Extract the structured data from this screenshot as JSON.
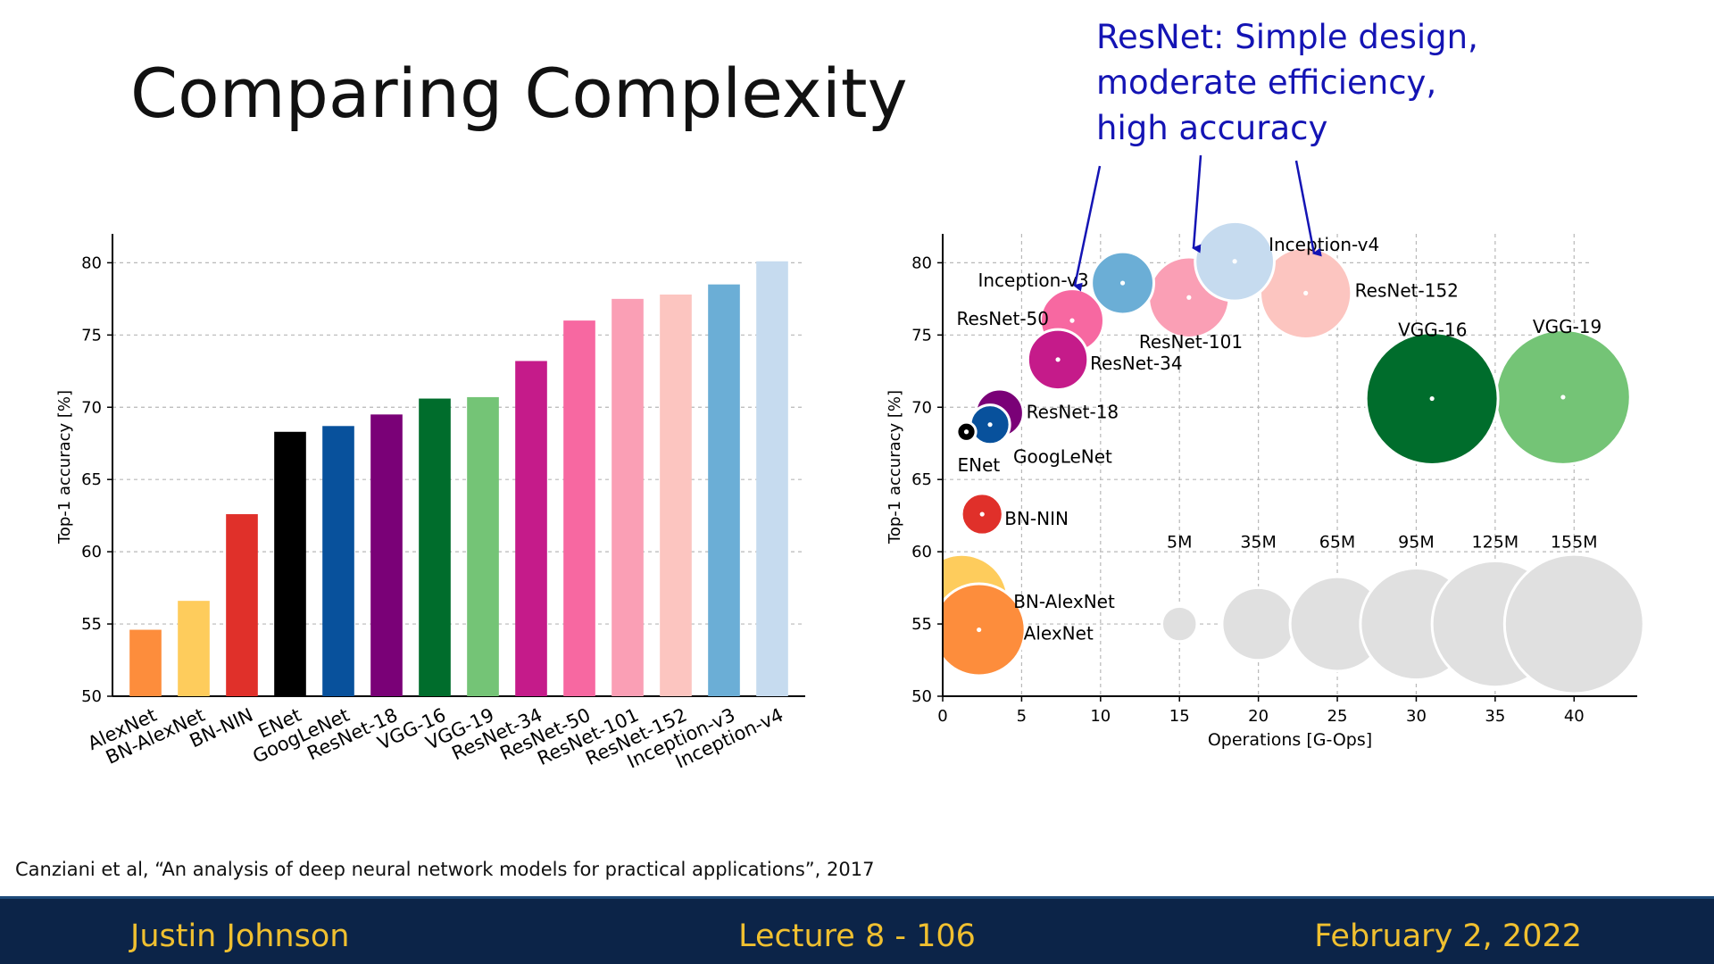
{
  "slide": {
    "title": "Comparing Complexity",
    "note_lines": [
      "ResNet: Simple design,",
      "moderate efficiency,",
      "high accuracy"
    ],
    "citation": "Canziani et al, “An analysis of deep neural network models for practical applications”, 2017",
    "footer": {
      "author": "Justin Johnson",
      "lecture": "Lecture 8 - 106",
      "date": "February 2, 2022"
    }
  },
  "colors": {
    "note": "#1414b4",
    "footer_bg": "#0c2448",
    "footer_text": "#f0c030"
  },
  "chart_data": [
    {
      "type": "bar",
      "ylabel": "Top-1 accuracy [%]",
      "xlabel": "",
      "ylim": [
        50,
        82
      ],
      "yticks": [
        50,
        55,
        60,
        65,
        70,
        75,
        80
      ],
      "grid": true,
      "categories": [
        "AlexNet",
        "BN-AlexNet",
        "BN-NIN",
        "ENet",
        "GoogLeNet",
        "ResNet-18",
        "VGG-16",
        "VGG-19",
        "ResNet-34",
        "ResNet-50",
        "ResNet-101",
        "ResNet-152",
        "Inception-v3",
        "Inception-v4"
      ],
      "values": [
        54.6,
        56.6,
        62.6,
        68.3,
        68.7,
        69.5,
        70.6,
        70.7,
        73.2,
        76.0,
        77.5,
        77.8,
        78.5,
        80.1
      ],
      "colors": [
        "#fd8d3c",
        "#fecc5c",
        "#e0302a",
        "#000000",
        "#08519c",
        "#7a0177",
        "#006d2c",
        "#74c476",
        "#c51b8a",
        "#f768a1",
        "#fa9fb5",
        "#fcc5c0",
        "#6baed6",
        "#c6dbef"
      ]
    },
    {
      "type": "scatter",
      "xlabel": "Operations [G-Ops]",
      "ylabel": "Top-1 accuracy [%]",
      "xlim": [
        0,
        44
      ],
      "ylim": [
        50,
        82
      ],
      "xticks": [
        0,
        5,
        10,
        15,
        20,
        25,
        30,
        35,
        40
      ],
      "yticks": [
        50,
        55,
        60,
        65,
        70,
        75,
        80
      ],
      "grid": true,
      "points": [
        {
          "name": "AlexNet",
          "x": 2.3,
          "y": 54.6,
          "params_m": 61,
          "color": "#fd8d3c"
        },
        {
          "name": "BN-AlexNet",
          "x": 1.2,
          "y": 56.6,
          "params_m": 62,
          "color": "#fecc5c"
        },
        {
          "name": "BN-NIN",
          "x": 2.5,
          "y": 62.6,
          "params_m": 8,
          "color": "#e0302a"
        },
        {
          "name": "ENet",
          "x": 1.5,
          "y": 68.3,
          "params_m": 0.4,
          "color": "#000000"
        },
        {
          "name": "GoogLeNet",
          "x": 3.0,
          "y": 68.8,
          "params_m": 7,
          "color": "#08519c"
        },
        {
          "name": "ResNet-18",
          "x": 3.6,
          "y": 69.6,
          "params_m": 12,
          "color": "#7a0177"
        },
        {
          "name": "ResNet-34",
          "x": 7.3,
          "y": 73.3,
          "params_m": 22,
          "color": "#c51b8a"
        },
        {
          "name": "ResNet-50",
          "x": 8.2,
          "y": 76.0,
          "params_m": 25,
          "color": "#f768a1"
        },
        {
          "name": "Inception-v3",
          "x": 11.4,
          "y": 78.6,
          "params_m": 24,
          "color": "#6baed6"
        },
        {
          "name": "ResNet-101",
          "x": 15.6,
          "y": 77.6,
          "params_m": 45,
          "color": "#fa9fb5"
        },
        {
          "name": "Inception-v4",
          "x": 18.5,
          "y": 80.1,
          "params_m": 43,
          "color": "#c6dbef"
        },
        {
          "name": "ResNet-152",
          "x": 23.0,
          "y": 77.9,
          "params_m": 60,
          "color": "#fcc5c0"
        },
        {
          "name": "VGG-16",
          "x": 31.0,
          "y": 70.6,
          "params_m": 138,
          "color": "#006d2c"
        },
        {
          "name": "VGG-19",
          "x": 39.3,
          "y": 70.7,
          "params_m": 144,
          "color": "#74c476"
        }
      ],
      "size_legend": {
        "labels": [
          "5M",
          "35M",
          "65M",
          "95M",
          "125M",
          "155M"
        ],
        "x": [
          15,
          20,
          25,
          30,
          35,
          40
        ],
        "params_m": [
          5,
          35,
          65,
          95,
          125,
          155
        ],
        "y": 55,
        "color": "#e0e0e0"
      }
    }
  ]
}
